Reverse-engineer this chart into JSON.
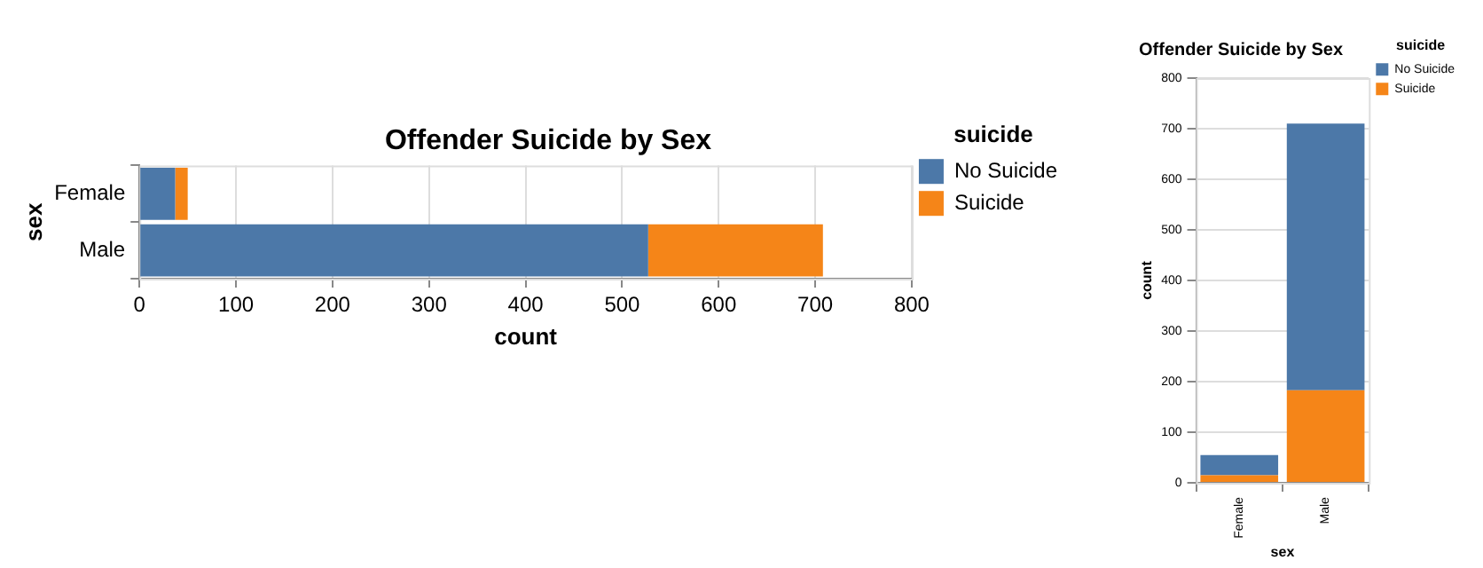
{
  "chart_data": [
    {
      "type": "bar",
      "title": "Offender Suicide by Sex",
      "orientation": "horizontal",
      "stacked": true,
      "categories": [
        "Female",
        "Male"
      ],
      "xlabel": "count",
      "ylabel": "sex",
      "legend_title": "suicide",
      "series": [
        {
          "name": "No Suicide",
          "color": "#4c78a8",
          "values": [
            37,
            527
          ]
        },
        {
          "name": "Suicide",
          "color": "#f58518",
          "values": [
            13,
            181
          ]
        }
      ],
      "xlim": [
        0,
        800
      ],
      "xticks": [
        0,
        100,
        200,
        300,
        400,
        500,
        600,
        700,
        800
      ],
      "grid": "x",
      "legend": "top right"
    },
    {
      "type": "bar",
      "title": "Offender Suicide by Sex",
      "stacked": true,
      "categories": [
        "Female",
        "Male"
      ],
      "xlabel": "sex",
      "ylabel": "count",
      "legend_title": "suicide",
      "series": [
        {
          "name": "Suicide",
          "color": "#f58518",
          "values": [
            15,
            183
          ]
        },
        {
          "name": "No Suicide",
          "color": "#4c78a8",
          "values": [
            40,
            527
          ]
        }
      ],
      "ylim": [
        0,
        800
      ],
      "yticks": [
        0,
        100,
        200,
        300,
        400,
        500,
        600,
        700,
        800
      ],
      "grid": "y",
      "legend": "top right"
    }
  ]
}
